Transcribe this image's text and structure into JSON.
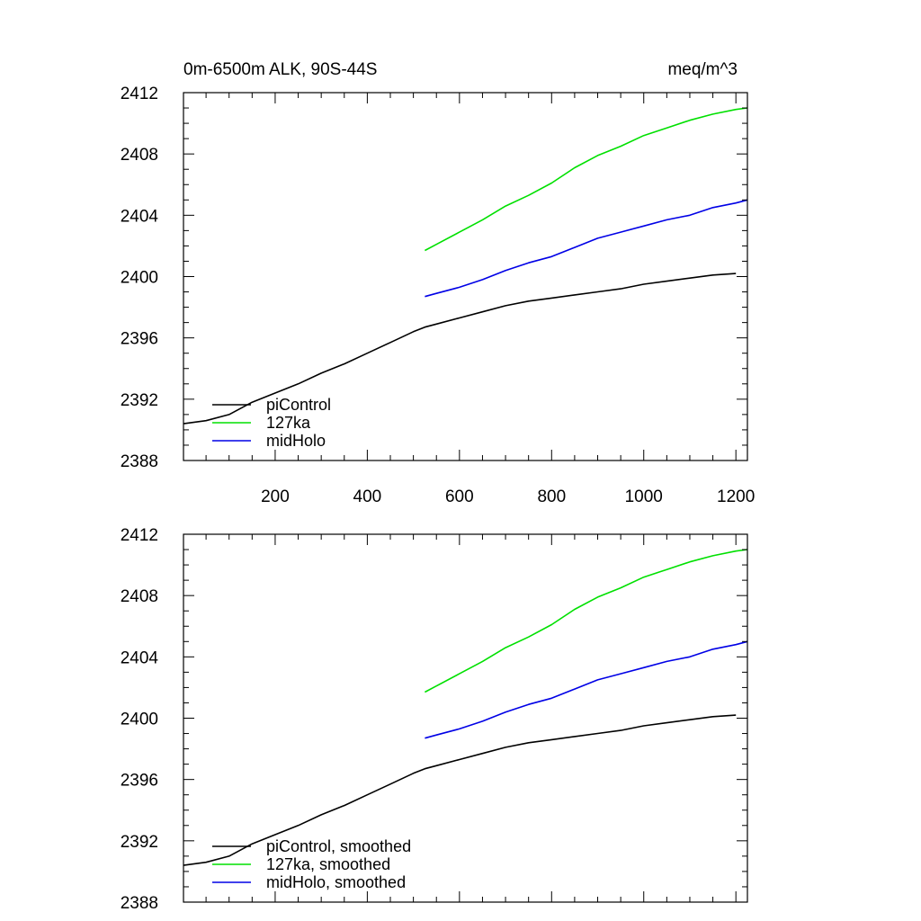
{
  "figure": {
    "title_left": "0m-6500m ALK, 90S-44S",
    "title_right": "meq/m^3"
  },
  "colors": {
    "piControl": "#000000",
    "127ka": "#00e000",
    "midHolo": "#0000e6"
  },
  "chart_data": [
    {
      "type": "line",
      "panel": "top",
      "title": "0m-6500m ALK, 90S-44S",
      "units": "meq/m^3",
      "xlim": [
        1,
        1225
      ],
      "ylim": [
        2388,
        2412
      ],
      "xticks": [
        200,
        400,
        600,
        800,
        1000,
        1200
      ],
      "yticks": [
        2388,
        2392,
        2396,
        2400,
        2404,
        2408,
        2412
      ],
      "legend_position": "bottom-left",
      "grid": false,
      "series": [
        {
          "name": "piControl",
          "color": "#000000",
          "x": [
            1,
            50,
            100,
            150,
            200,
            250,
            300,
            350,
            400,
            450,
            500,
            525,
            550,
            600,
            650,
            700,
            750,
            800,
            850,
            900,
            950,
            1000,
            1050,
            1100,
            1150,
            1200
          ],
          "y": [
            2390.4,
            2390.6,
            2391.0,
            2391.8,
            2392.4,
            2393.0,
            2393.7,
            2394.3,
            2395.0,
            2395.7,
            2396.4,
            2396.7,
            2396.9,
            2397.3,
            2397.7,
            2398.1,
            2398.4,
            2398.6,
            2398.8,
            2399.0,
            2399.2,
            2399.5,
            2399.7,
            2399.9,
            2400.1,
            2400.2
          ]
        },
        {
          "name": "127ka",
          "color": "#00e000",
          "x": [
            525,
            550,
            600,
            650,
            700,
            750,
            800,
            850,
            900,
            950,
            1000,
            1050,
            1100,
            1150,
            1200,
            1225
          ],
          "y": [
            2401.7,
            2402.1,
            2402.9,
            2403.7,
            2404.6,
            2405.3,
            2406.1,
            2407.1,
            2407.9,
            2408.5,
            2409.2,
            2409.7,
            2410.2,
            2410.6,
            2410.9,
            2411.0
          ]
        },
        {
          "name": "midHolo",
          "color": "#0000e6",
          "x": [
            525,
            550,
            600,
            650,
            700,
            750,
            800,
            850,
            900,
            950,
            1000,
            1050,
            1100,
            1150,
            1200,
            1225
          ],
          "y": [
            2398.7,
            2398.9,
            2399.3,
            2399.8,
            2400.4,
            2400.9,
            2401.3,
            2401.9,
            2402.5,
            2402.9,
            2403.3,
            2403.7,
            2404.0,
            2404.5,
            2404.8,
            2405.0
          ]
        }
      ]
    },
    {
      "type": "line",
      "panel": "bottom",
      "xlim": [
        1,
        1225
      ],
      "ylim": [
        2388,
        2412
      ],
      "xticks": [
        200,
        400,
        600,
        800,
        1000,
        1200
      ],
      "yticks": [
        2388,
        2392,
        2396,
        2400,
        2404,
        2408,
        2412
      ],
      "legend_position": "bottom-left",
      "grid": false,
      "series": [
        {
          "name": "piControl, smoothed",
          "color": "#000000",
          "x": [
            1,
            50,
            100,
            150,
            200,
            250,
            300,
            350,
            400,
            450,
            500,
            525,
            550,
            600,
            650,
            700,
            750,
            800,
            850,
            900,
            950,
            1000,
            1050,
            1100,
            1150,
            1200
          ],
          "y": [
            2390.4,
            2390.6,
            2391.0,
            2391.8,
            2392.4,
            2393.0,
            2393.7,
            2394.3,
            2395.0,
            2395.7,
            2396.4,
            2396.7,
            2396.9,
            2397.3,
            2397.7,
            2398.1,
            2398.4,
            2398.6,
            2398.8,
            2399.0,
            2399.2,
            2399.5,
            2399.7,
            2399.9,
            2400.1,
            2400.2
          ]
        },
        {
          "name": "127ka, smoothed",
          "color": "#00e000",
          "x": [
            525,
            550,
            600,
            650,
            700,
            750,
            800,
            850,
            900,
            950,
            1000,
            1050,
            1100,
            1150,
            1200,
            1225
          ],
          "y": [
            2401.7,
            2402.1,
            2402.9,
            2403.7,
            2404.6,
            2405.3,
            2406.1,
            2407.1,
            2407.9,
            2408.5,
            2409.2,
            2409.7,
            2410.2,
            2410.6,
            2410.9,
            2411.0
          ]
        },
        {
          "name": "midHolo, smoothed",
          "color": "#0000e6",
          "x": [
            525,
            550,
            600,
            650,
            700,
            750,
            800,
            850,
            900,
            950,
            1000,
            1050,
            1100,
            1150,
            1200,
            1225
          ],
          "y": [
            2398.7,
            2398.9,
            2399.3,
            2399.8,
            2400.4,
            2400.9,
            2401.3,
            2401.9,
            2402.5,
            2402.9,
            2403.3,
            2403.7,
            2404.0,
            2404.5,
            2404.8,
            2405.0
          ]
        }
      ]
    }
  ]
}
